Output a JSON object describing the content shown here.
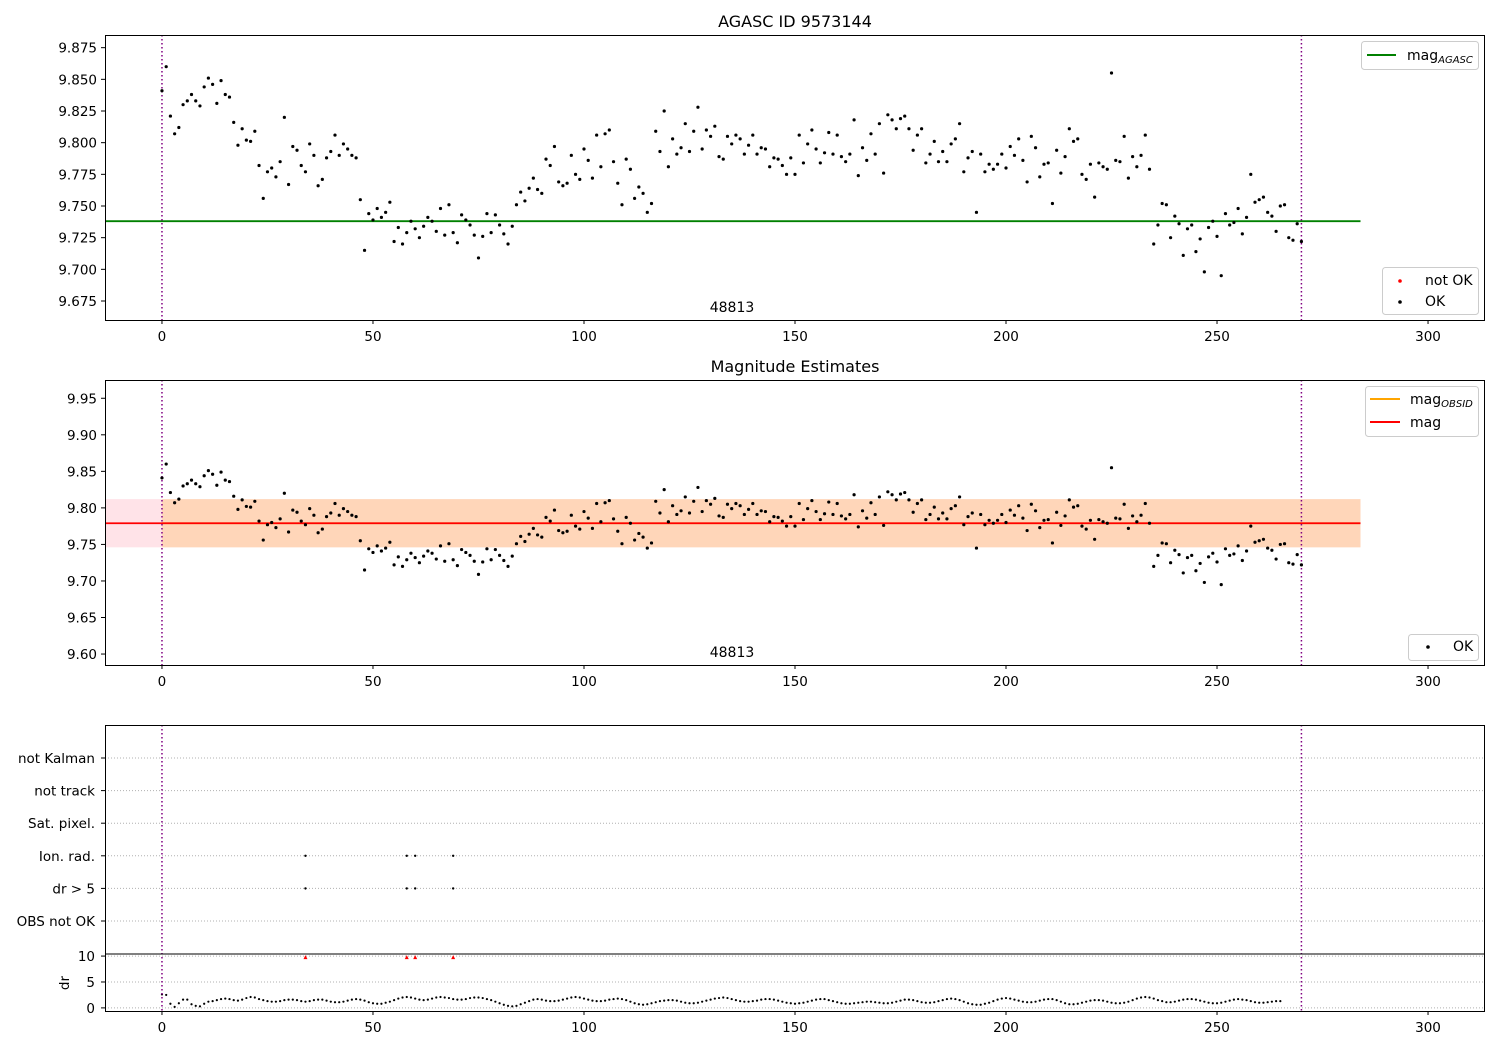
{
  "chart_data": [
    {
      "type": "scatter",
      "title": "AGASC ID 9573144",
      "xlim": [
        -13.5,
        313.5
      ],
      "ylim": [
        9.66,
        9.885
      ],
      "xticks": [
        0,
        50,
        100,
        150,
        200,
        250,
        300
      ],
      "yticks": [
        9.675,
        9.7,
        9.725,
        9.75,
        9.775,
        9.8,
        9.825,
        9.85,
        9.875
      ],
      "ytick_labels": [
        "9.675",
        "9.700",
        "9.725",
        "9.750",
        "9.775",
        "9.800",
        "9.825",
        "9.850",
        "9.875"
      ],
      "vlines": [
        0,
        270
      ],
      "vline_color": "#800080",
      "obsid_label": {
        "text": "48813",
        "x": 135
      },
      "mag_agasc": {
        "value": 9.738,
        "x_range": [
          -13.5,
          284
        ],
        "color": "#008000"
      },
      "legend_top": [
        {
          "label": "mag",
          "subscript": "AGASC",
          "color": "#008000"
        }
      ],
      "legend_bottom": [
        {
          "label": "not OK",
          "color": "#ff0000"
        },
        {
          "label": "OK",
          "color": "#000000"
        }
      ],
      "series": [
        {
          "name": "OK",
          "ref": "mag_series"
        }
      ]
    },
    {
      "type": "scatter",
      "title": "Magnitude Estimates",
      "xlim": [
        -13.5,
        313.5
      ],
      "ylim": [
        9.585,
        9.975
      ],
      "xticks": [
        0,
        50,
        100,
        150,
        200,
        250,
        300
      ],
      "yticks": [
        9.6,
        9.65,
        9.7,
        9.75,
        9.8,
        9.85,
        9.9,
        9.95
      ],
      "ytick_labels": [
        "9.60",
        "9.65",
        "9.70",
        "9.75",
        "9.80",
        "9.85",
        "9.90",
        "9.95"
      ],
      "vlines": [
        0,
        270
      ],
      "vline_color": "#800080",
      "obsid_label": {
        "text": "48813",
        "x": 135
      },
      "mag": {
        "value": 9.779,
        "band": [
          9.746,
          9.812
        ],
        "x_range": [
          -13.5,
          284
        ],
        "color": "#ff0000"
      },
      "mag_obsid": {
        "value": 9.779,
        "band": [
          9.746,
          9.812
        ],
        "x_range": [
          0,
          284
        ],
        "color": "#ffa500"
      },
      "legend_top": [
        {
          "label": "mag",
          "subscript": "OBSID",
          "color": "#ffa500"
        },
        {
          "label": "mag",
          "subscript": "",
          "color": "#ff0000"
        }
      ],
      "legend_bottom": [
        {
          "label": "OK",
          "color": "#000000"
        }
      ],
      "series": [
        {
          "name": "OK",
          "ref": "mag_series"
        }
      ]
    },
    {
      "type": "scatter",
      "title": "",
      "xlim": [
        -13.5,
        313.5
      ],
      "xticks": [
        0,
        50,
        100,
        150,
        200,
        250,
        300
      ],
      "flag_labels": [
        "not Kalman",
        "not track",
        "Sat. pixel.",
        "Ion. rad.",
        "dr > 5",
        "OBS not OK"
      ],
      "flags": {
        "Ion. rad.": [
          34,
          58,
          60,
          69
        ],
        "dr > 5": [
          34,
          58,
          60,
          69
        ]
      },
      "dr": {
        "ylabel": "dr",
        "yticks": [
          0,
          5,
          10
        ],
        "ytick_labels": [
          "0",
          "5",
          "10"
        ],
        "ylim": [
          -0.6,
          10.4
        ],
        "clipped_x": [
          34,
          58,
          60,
          69
        ],
        "clip_value": 9.8,
        "values": [
          2.6,
          2.5,
          0.8,
          0.2,
          0.9,
          1.6,
          1.6,
          0.7,
          0.4,
          0.3,
          0.8,
          1.2,
          1.3,
          1.5,
          1.7,
          1.8,
          1.7,
          1.5,
          1.4,
          1.6,
          1.9,
          2.1,
          2.0,
          1.7,
          1.5,
          1.3,
          1.2,
          1.2,
          1.3,
          1.5,
          1.6,
          1.6,
          1.5,
          1.3,
          1.2,
          1.3,
          1.5,
          1.6,
          1.6,
          1.4,
          1.2,
          1.1,
          1.1,
          1.2,
          1.4,
          1.6,
          1.7,
          1.6,
          1.4,
          1.1,
          0.9,
          0.8,
          0.8,
          1.0,
          1.2,
          1.5,
          1.8,
          2.0,
          2.1,
          2.0,
          1.8,
          1.6,
          1.5,
          1.6,
          1.8,
          2.0,
          2.1,
          2.0,
          1.9,
          1.7,
          1.6,
          1.6,
          1.7,
          1.9,
          2.0,
          2.0,
          1.9,
          1.7,
          1.5,
          1.2,
          0.9,
          0.6,
          0.4,
          0.3,
          0.4,
          0.7,
          1.0,
          1.3,
          1.6,
          1.7,
          1.6,
          1.4,
          1.3,
          1.3,
          1.4,
          1.6,
          1.8,
          2.0,
          2.1,
          2.0,
          1.8,
          1.6,
          1.4,
          1.3,
          1.3,
          1.4,
          1.6,
          1.7,
          1.8,
          1.7,
          1.5,
          1.2,
          0.9,
          0.7,
          0.6,
          0.7,
          0.9,
          1.1,
          1.3,
          1.4,
          1.5,
          1.5,
          1.4,
          1.2,
          1.0,
          0.9,
          0.9,
          1.0,
          1.2,
          1.4,
          1.6,
          1.8,
          1.9,
          2.0,
          1.9,
          1.7,
          1.5,
          1.3,
          1.2,
          1.2,
          1.3,
          1.4,
          1.6,
          1.7,
          1.7,
          1.6,
          1.4,
          1.2,
          1.0,
          0.9,
          0.8,
          0.9,
          1.0,
          1.2,
          1.4,
          1.6,
          1.7,
          1.7,
          1.5,
          1.3,
          1.1,
          0.9,
          0.8,
          0.8,
          0.9,
          1.0,
          1.1,
          1.2,
          1.2,
          1.1,
          1.0,
          0.9,
          0.9,
          1.0,
          1.2,
          1.4,
          1.6,
          1.6,
          1.5,
          1.3,
          1.1,
          1.0,
          1.0,
          1.1,
          1.3,
          1.5,
          1.7,
          1.8,
          1.7,
          1.5,
          1.2,
          0.9,
          0.7,
          0.6,
          0.6,
          0.8,
          1.0,
          1.3,
          1.6,
          1.8,
          1.9,
          1.8,
          1.6,
          1.4,
          1.2,
          1.1,
          1.1,
          1.2,
          1.4,
          1.6,
          1.7,
          1.7,
          1.5,
          1.2,
          0.9,
          0.7,
          0.7,
          0.8,
          1.0,
          1.2,
          1.4,
          1.5,
          1.5,
          1.4,
          1.2,
          1.0,
          0.9,
          0.9,
          1.0,
          1.2,
          1.5,
          1.8,
          2.0,
          2.1,
          2.0,
          1.8,
          1.5,
          1.3,
          1.1,
          1.1,
          1.2,
          1.4,
          1.6,
          1.7,
          1.7,
          1.6,
          1.4,
          1.2,
          1.0,
          0.9,
          0.9,
          1.0,
          1.2,
          1.4,
          1.6,
          1.7,
          1.6,
          1.5,
          1.3,
          1.1,
          1.0,
          1.0,
          1.1,
          1.2,
          1.3,
          1.3
        ]
      }
    }
  ],
  "mag_series": [
    9.841,
    9.86,
    9.821,
    9.807,
    9.812,
    9.83,
    9.833,
    9.838,
    9.833,
    9.829,
    9.844,
    9.851,
    9.846,
    9.831,
    9.849,
    9.838,
    9.836,
    9.816,
    9.798,
    9.811,
    9.802,
    9.801,
    9.809,
    9.782,
    9.756,
    9.777,
    9.78,
    9.773,
    9.785,
    9.82,
    9.767,
    9.797,
    9.794,
    9.782,
    9.777,
    9.799,
    9.79,
    9.766,
    9.771,
    9.788,
    9.793,
    9.806,
    9.79,
    9.799,
    9.795,
    9.79,
    9.788,
    9.755,
    9.715,
    9.744,
    9.739,
    9.748,
    9.741,
    9.745,
    9.753,
    9.722,
    9.733,
    9.72,
    9.729,
    9.738,
    9.732,
    9.725,
    9.734,
    9.741,
    9.738,
    9.73,
    9.748,
    9.727,
    9.751,
    9.729,
    9.721,
    9.743,
    9.739,
    9.735,
    9.727,
    9.709,
    9.726,
    9.744,
    9.729,
    9.743,
    9.735,
    9.728,
    9.72,
    9.734,
    9.751,
    9.761,
    9.754,
    9.764,
    9.772,
    9.763,
    9.76,
    9.787,
    9.782,
    9.797,
    9.769,
    9.766,
    9.768,
    9.79,
    9.775,
    9.771,
    9.795,
    9.786,
    9.772,
    9.806,
    9.781,
    9.807,
    9.81,
    9.785,
    9.768,
    9.751,
    9.787,
    9.779,
    9.756,
    9.765,
    9.76,
    9.745,
    9.752,
    9.809,
    9.793,
    9.825,
    9.781,
    9.803,
    9.791,
    9.796,
    9.815,
    9.793,
    9.809,
    9.828,
    9.795,
    9.81,
    9.805,
    9.813,
    9.789,
    9.787,
    9.805,
    9.799,
    9.806,
    9.803,
    9.791,
    9.798,
    9.806,
    9.791,
    9.796,
    9.795,
    9.781,
    9.788,
    9.787,
    9.782,
    9.775,
    9.788,
    9.775,
    9.806,
    9.784,
    9.799,
    9.81,
    9.795,
    9.784,
    9.792,
    9.808,
    9.791,
    9.806,
    9.789,
    9.785,
    9.791,
    9.818,
    9.774,
    9.796,
    9.786,
    9.807,
    9.791,
    9.815,
    9.776,
    9.822,
    9.818,
    9.811,
    9.819,
    9.821,
    9.811,
    9.794,
    9.806,
    9.811,
    9.784,
    9.791,
    9.801,
    9.785,
    9.793,
    9.785,
    9.799,
    9.803,
    9.815,
    9.777,
    9.788,
    9.793,
    9.745,
    9.791,
    9.777,
    9.783,
    9.779,
    9.783,
    9.791,
    9.78,
    9.797,
    9.79,
    9.803,
    9.786,
    9.769,
    9.805,
    9.796,
    9.773,
    9.783,
    9.784,
    9.752,
    9.794,
    9.776,
    9.789,
    9.811,
    9.801,
    9.803,
    9.775,
    9.771,
    9.783,
    9.757,
    9.784,
    9.781,
    9.779,
    9.855,
    9.786,
    9.785,
    9.805,
    9.772,
    9.789,
    9.781,
    9.79,
    9.806,
    9.779,
    9.72,
    9.735,
    9.752,
    9.751,
    9.725,
    9.742,
    9.736,
    9.711,
    9.732,
    9.735,
    9.714,
    9.724,
    9.698,
    9.733,
    9.738,
    9.726,
    9.695,
    9.744,
    9.735,
    9.737,
    9.748,
    9.728,
    9.741,
    9.775,
    9.753,
    9.755,
    9.757,
    9.745,
    9.742,
    9.73,
    9.75,
    9.751,
    9.725,
    9.723,
    9.736,
    9.722
  ]
}
